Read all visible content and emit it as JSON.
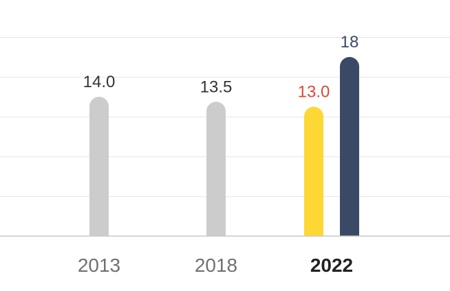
{
  "chart_data": {
    "type": "bar",
    "categories": [
      "2013",
      "2018",
      "2022"
    ],
    "highlight_category": "2022",
    "ylim": [
      0,
      20
    ],
    "grid": true,
    "bars": [
      {
        "category": "2013",
        "value": 14.0,
        "label": "14.0",
        "color": "#cccccc",
        "label_color": "#333333"
      },
      {
        "category": "2018",
        "value": 13.5,
        "label": "13.5",
        "color": "#cccccc",
        "label_color": "#333333"
      },
      {
        "category": "2022",
        "value": 13.0,
        "label": "13.0",
        "color": "#fdd835",
        "label_color": "#e0453a"
      },
      {
        "category": "2022",
        "value": 18,
        "label": "18",
        "color": "#3a4a66",
        "label_color": "#3a4a66"
      }
    ]
  }
}
